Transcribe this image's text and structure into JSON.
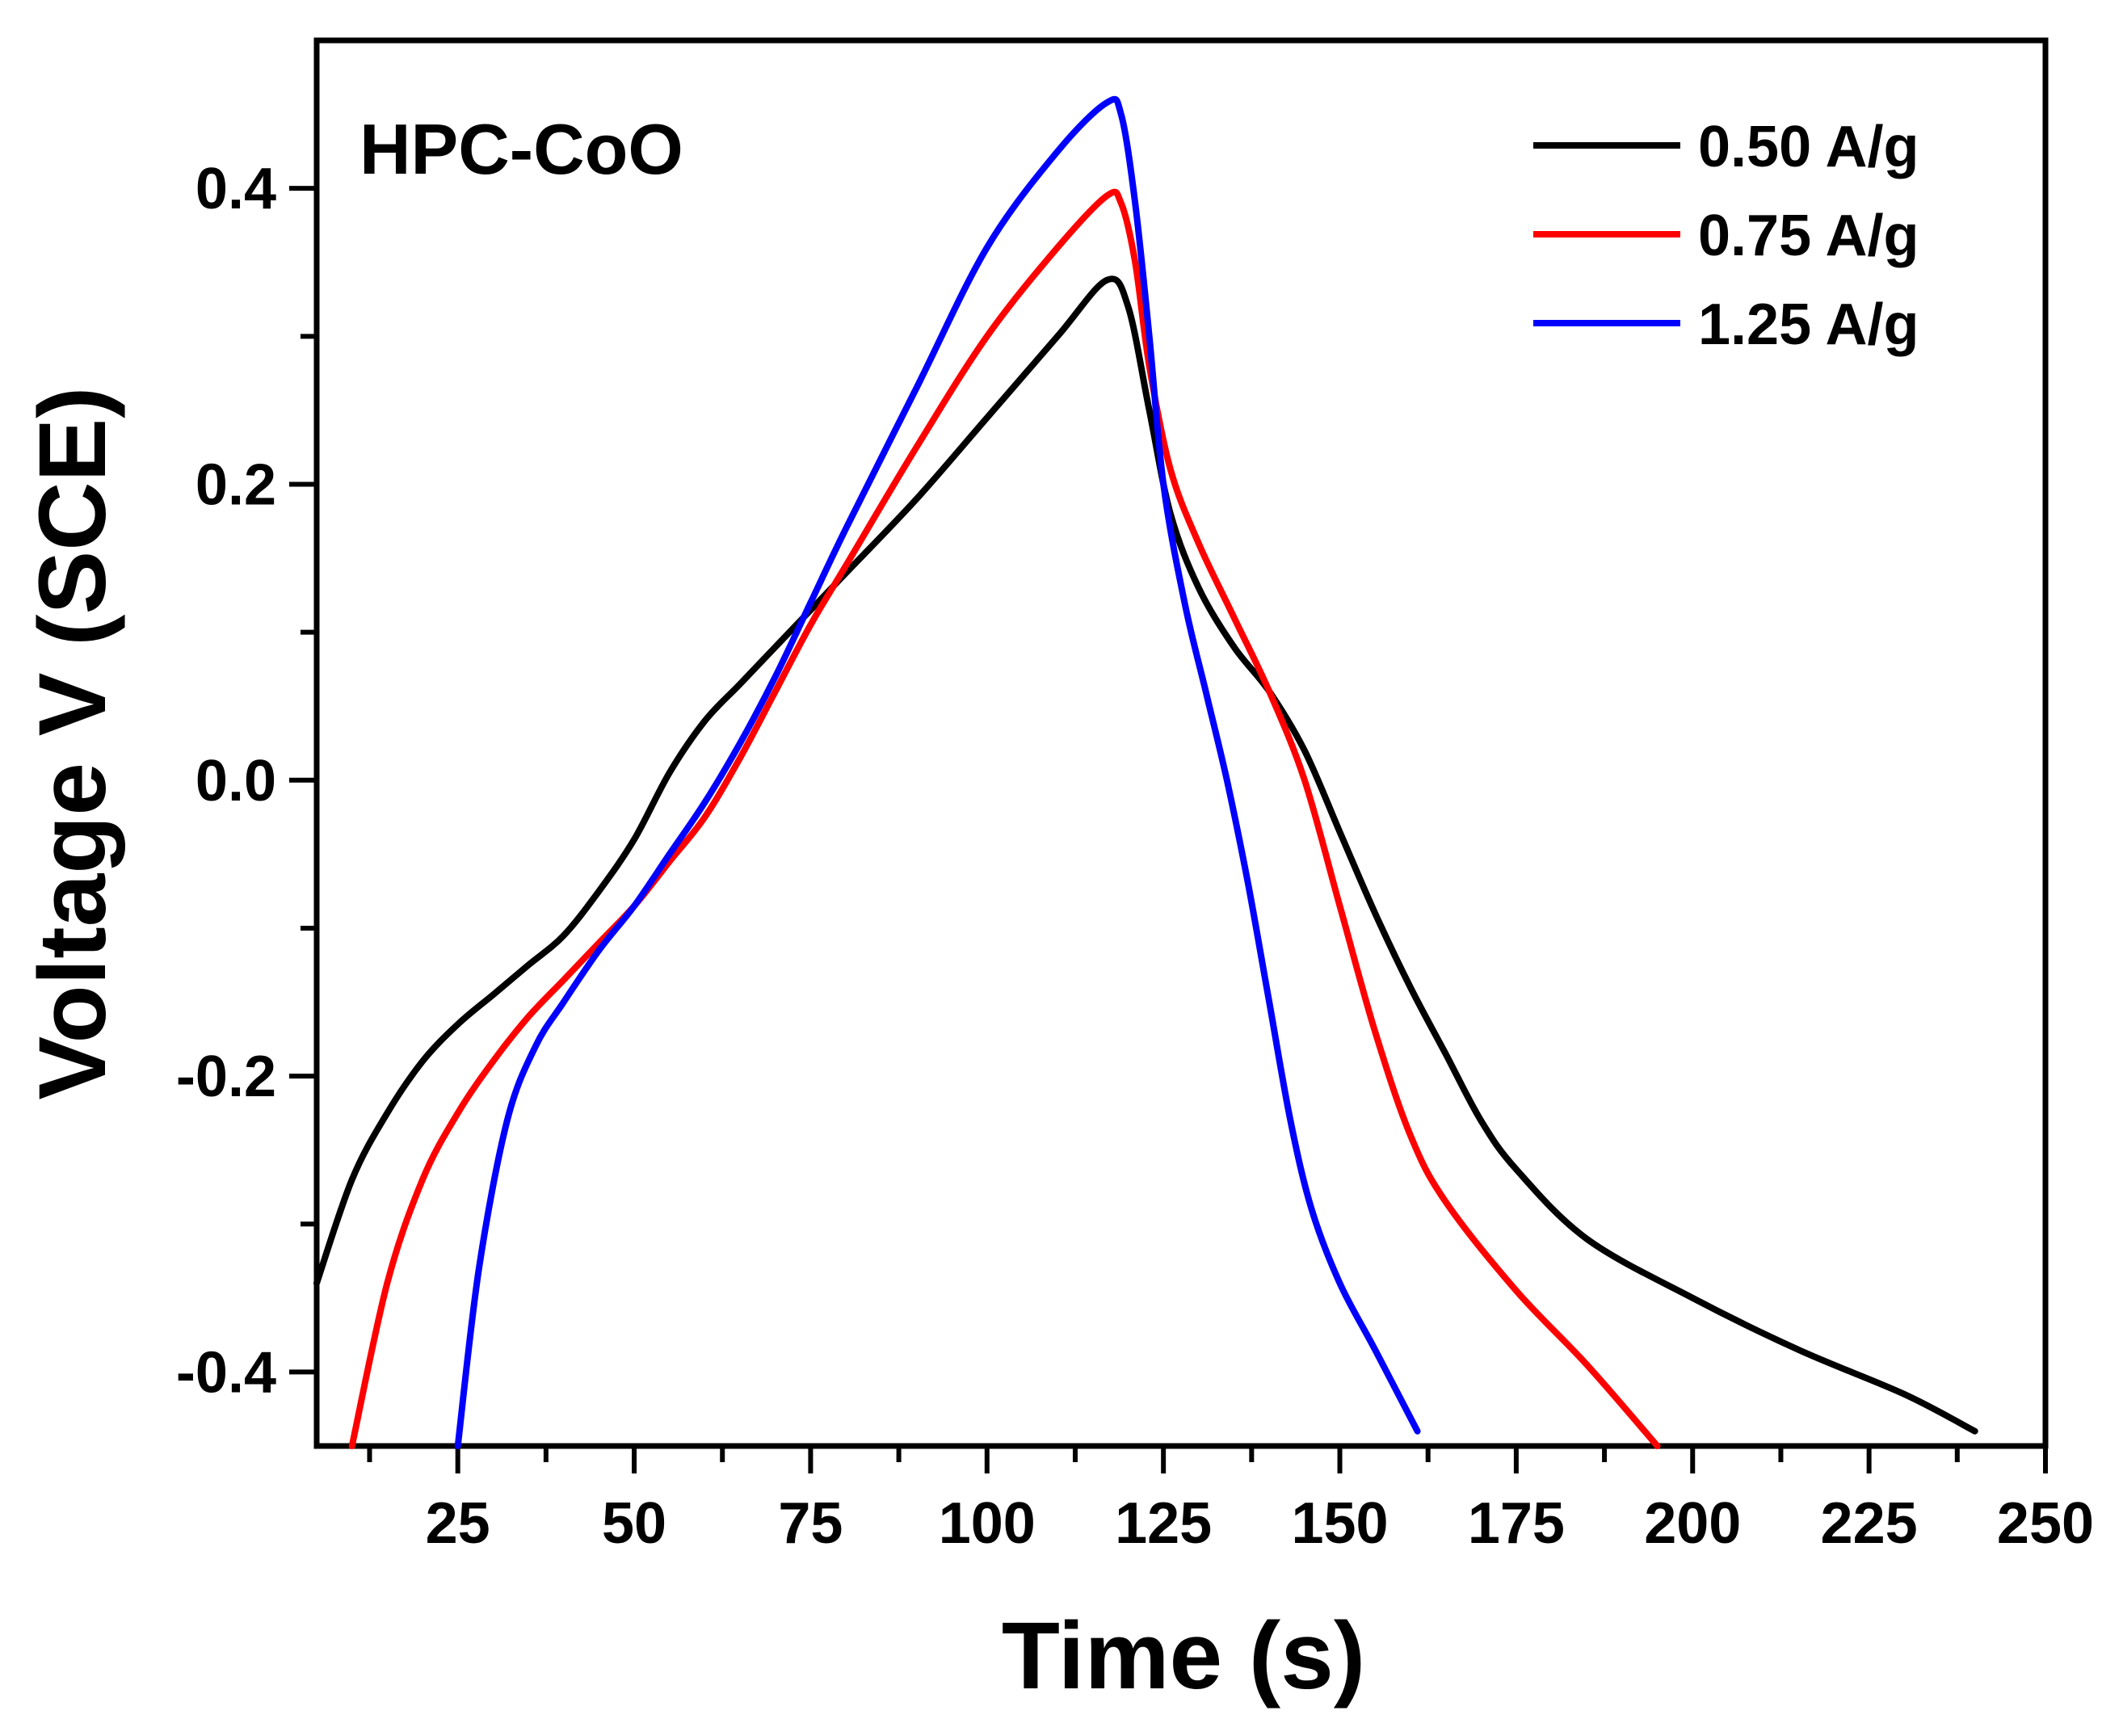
{
  "chart_data": {
    "type": "line",
    "title": "",
    "annotation": "HPC-CoO",
    "xlabel": "Time (s)",
    "ylabel": "Voltage V (SCE)",
    "xlim": [
      5,
      250
    ],
    "ylim": [
      -0.45,
      0.5
    ],
    "x_ticks": [
      25,
      50,
      75,
      100,
      125,
      150,
      175,
      200,
      225,
      250
    ],
    "x_tick_labels": [
      "25",
      "50",
      "75",
      "100",
      "125",
      "150",
      "175",
      "200",
      "225",
      "250"
    ],
    "y_ticks": [
      -0.4,
      -0.2,
      0.0,
      0.2,
      0.4
    ],
    "y_tick_labels": [
      "-0.4",
      "-0.2",
      "0.0",
      "0.2",
      "0.4"
    ],
    "grid": false,
    "legend_position": "top-right",
    "series": [
      {
        "name": "0.50 A/g",
        "color": "#000000",
        "points": [
          [
            5,
            -0.34
          ],
          [
            10,
            -0.27
          ],
          [
            15,
            -0.225
          ],
          [
            20,
            -0.19
          ],
          [
            25,
            -0.165
          ],
          [
            30,
            -0.145
          ],
          [
            35,
            -0.125
          ],
          [
            40,
            -0.105
          ],
          [
            45,
            -0.075
          ],
          [
            50,
            -0.04
          ],
          [
            55,
            0.005
          ],
          [
            60,
            0.04
          ],
          [
            65,
            0.065
          ],
          [
            70,
            0.09
          ],
          [
            75,
            0.115
          ],
          [
            80,
            0.14
          ],
          [
            90,
            0.19
          ],
          [
            100,
            0.245
          ],
          [
            110,
            0.3
          ],
          [
            117,
            0.338
          ],
          [
            120,
            0.32
          ],
          [
            123,
            0.25
          ],
          [
            126,
            0.18
          ],
          [
            130,
            0.13
          ],
          [
            135,
            0.09
          ],
          [
            140,
            0.06
          ],
          [
            145,
            0.02
          ],
          [
            150,
            -0.035
          ],
          [
            155,
            -0.09
          ],
          [
            160,
            -0.14
          ],
          [
            165,
            -0.185
          ],
          [
            170,
            -0.23
          ],
          [
            175,
            -0.263
          ],
          [
            185,
            -0.31
          ],
          [
            200,
            -0.35
          ],
          [
            215,
            -0.385
          ],
          [
            230,
            -0.415
          ],
          [
            240,
            -0.44
          ]
        ]
      },
      {
        "name": "0.75 A/g",
        "color": "#ff0000",
        "points": [
          [
            10,
            -0.45
          ],
          [
            15,
            -0.34
          ],
          [
            20,
            -0.27
          ],
          [
            25,
            -0.225
          ],
          [
            30,
            -0.19
          ],
          [
            35,
            -0.16
          ],
          [
            40,
            -0.135
          ],
          [
            45,
            -0.11
          ],
          [
            50,
            -0.085
          ],
          [
            55,
            -0.055
          ],
          [
            60,
            -0.025
          ],
          [
            65,
            0.015
          ],
          [
            70,
            0.06
          ],
          [
            75,
            0.105
          ],
          [
            80,
            0.145
          ],
          [
            90,
            0.225
          ],
          [
            100,
            0.3
          ],
          [
            110,
            0.36
          ],
          [
            117,
            0.395
          ],
          [
            119,
            0.39
          ],
          [
            121,
            0.35
          ],
          [
            123,
            0.28
          ],
          [
            126,
            0.21
          ],
          [
            130,
            0.16
          ],
          [
            135,
            0.11
          ],
          [
            140,
            0.06
          ],
          [
            145,
            0.0
          ],
          [
            150,
            -0.085
          ],
          [
            155,
            -0.17
          ],
          [
            160,
            -0.24
          ],
          [
            165,
            -0.285
          ],
          [
            175,
            -0.345
          ],
          [
            185,
            -0.395
          ],
          [
            195,
            -0.45
          ]
        ]
      },
      {
        "name": "1.25 A/g",
        "color": "#0000ff",
        "points": [
          [
            25,
            -0.45
          ],
          [
            28,
            -0.33
          ],
          [
            32,
            -0.23
          ],
          [
            36,
            -0.18
          ],
          [
            40,
            -0.15
          ],
          [
            45,
            -0.115
          ],
          [
            50,
            -0.085
          ],
          [
            55,
            -0.05
          ],
          [
            60,
            -0.015
          ],
          [
            65,
            0.025
          ],
          [
            70,
            0.07
          ],
          [
            75,
            0.12
          ],
          [
            80,
            0.17
          ],
          [
            90,
            0.265
          ],
          [
            100,
            0.36
          ],
          [
            110,
            0.425
          ],
          [
            117,
            0.458
          ],
          [
            119,
            0.45
          ],
          [
            121,
            0.39
          ],
          [
            123,
            0.3
          ],
          [
            125,
            0.2
          ],
          [
            128,
            0.12
          ],
          [
            131,
            0.06
          ],
          [
            134,
            0.0
          ],
          [
            137,
            -0.07
          ],
          [
            140,
            -0.15
          ],
          [
            143,
            -0.23
          ],
          [
            146,
            -0.29
          ],
          [
            150,
            -0.34
          ],
          [
            155,
            -0.385
          ],
          [
            161,
            -0.44
          ]
        ]
      }
    ]
  }
}
